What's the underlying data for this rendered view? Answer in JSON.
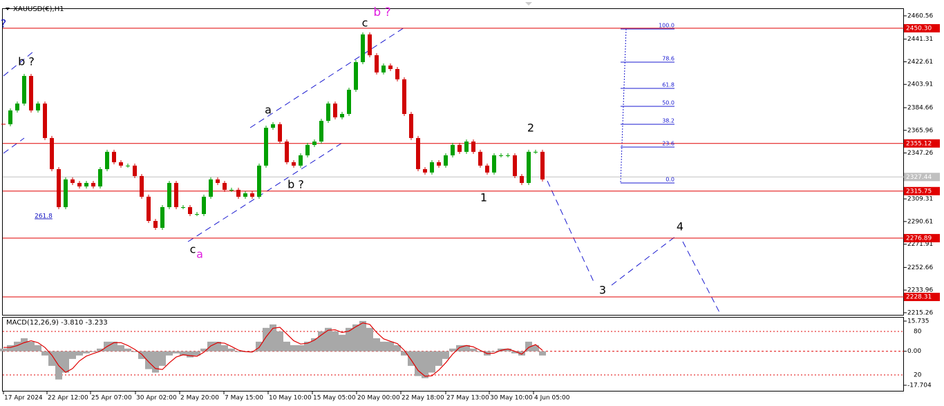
{
  "chart_data": [
    {
      "type": "candlestick",
      "title": "XAUUSD(€),H1",
      "x": [
        0,
        1,
        2,
        3,
        4,
        5,
        6,
        7,
        8,
        9,
        10,
        11,
        12,
        13,
        14,
        15,
        16,
        17,
        18,
        19,
        20,
        21,
        22,
        23,
        24,
        25,
        26,
        27,
        28,
        29,
        30,
        31,
        32,
        33,
        34,
        35,
        36,
        37,
        38,
        39,
        40,
        41,
        42,
        43,
        44,
        45,
        46,
        47,
        48,
        49,
        50,
        51,
        52,
        53,
        54,
        55,
        56,
        57,
        58,
        59,
        60,
        61,
        62,
        63,
        64,
        65,
        66,
        67,
        68,
        69,
        70,
        71,
        72,
        73,
        74,
        75,
        76,
        77,
        78
      ],
      "values": [
        2371.0,
        2382.4,
        2388.1,
        2410.9,
        2382.4,
        2388.1,
        2359.6,
        2333.9,
        2302.5,
        2325.4,
        2322.5,
        2319.6,
        2322.5,
        2319.6,
        2333.9,
        2348.2,
        2339.6,
        2336.8,
        2336.8,
        2328.2,
        2311.1,
        2291.1,
        2285.4,
        2302.5,
        2322.5,
        2302.5,
        2302.5,
        2296.8,
        2296.8,
        2311.1,
        2325.4,
        2322.5,
        2316.8,
        2316.8,
        2311.1,
        2313.9,
        2311.1,
        2336.8,
        2368.1,
        2371.0,
        2356.7,
        2339.6,
        2336.8,
        2345.3,
        2353.9,
        2356.7,
        2373.8,
        2388.1,
        2376.7,
        2379.5,
        2399.5,
        2422.3,
        2445.2,
        2428.0,
        2413.8,
        2419.5,
        2416.6,
        2408.1,
        2379.5,
        2359.6,
        2333.9,
        2331.1,
        2339.6,
        2336.8,
        2345.3,
        2353.9,
        2348.2,
        2356.7,
        2348.2,
        2336.8,
        2331.1,
        2345.3,
        2345.3,
        2345.3,
        2328.2,
        2322.5,
        2348.2,
        2348.2,
        2325.4
      ],
      "up_color": "#00a000",
      "down_color": "#d00000",
      "xlim": [
        0,
        130
      ],
      "xticks": [
        {
          "value": 0,
          "label": "17 Apr 2024"
        },
        {
          "value": 6.3,
          "label": "22 Apr 12:00"
        },
        {
          "value": 12.6,
          "label": "25 Apr 07:00"
        },
        {
          "value": 19.1,
          "label": "30 Apr 02:00"
        },
        {
          "value": 25.5,
          "label": "2 May 20:00"
        },
        {
          "value": 31.9,
          "label": "7 May 15:00"
        },
        {
          "value": 38.3,
          "label": "10 May 10:00"
        },
        {
          "value": 44.7,
          "label": "15 May 05:00"
        },
        {
          "value": 51.1,
          "label": "20 May 00:00"
        },
        {
          "value": 57.5,
          "label": "22 May 18:00"
        },
        {
          "value": 64,
          "label": "27 May 13:00"
        },
        {
          "value": 70.3,
          "label": "30 May 10:00"
        },
        {
          "value": 76.7,
          "label": "4 Jun 05:00"
        }
      ],
      "ylim": [
        2213.5,
        2466.8
      ],
      "yticks": [
        2460.56,
        2441.31,
        2422.61,
        2403.91,
        2384.66,
        2365.96,
        2347.26,
        2309.31,
        2290.61,
        2271.91,
        2252.66,
        2233.96,
        2215.26
      ],
      "levels": [
        {
          "value": 2450.3,
          "label": "2450.30",
          "color": "#e00000"
        },
        {
          "value": 2355.12,
          "label": "2355.12",
          "color": "#e00000"
        },
        {
          "value": 2327.44,
          "label": "2327.44",
          "color": "#c0c0c0"
        },
        {
          "value": 2315.75,
          "label": "2315.75",
          "color": "#e00000"
        },
        {
          "value": 2276.89,
          "label": "2276.89",
          "color": "#e00000"
        },
        {
          "value": 2228.31,
          "label": "2228.31",
          "color": "#e00000"
        }
      ],
      "annotations": [
        "?",
        "b ?",
        "b ?",
        "c",
        "a",
        "b ?",
        "c",
        "a",
        "1",
        "2",
        "3",
        "4",
        "261.8"
      ],
      "fibonacci": [
        "100.0",
        "78.6",
        "61.8",
        "50.0",
        "38.2",
        "23.6",
        "0.0"
      ]
    },
    {
      "type": "macd",
      "title": "MACD(12,26,9) -3.810 -3.233",
      "x": [
        0,
        1,
        2,
        3,
        4,
        5,
        6,
        7,
        8,
        9,
        10,
        11,
        12,
        13,
        14,
        15,
        16,
        17,
        18,
        19,
        20,
        21,
        22,
        23,
        24,
        25,
        26,
        27,
        28,
        29,
        30,
        31,
        32,
        33,
        34,
        35,
        36,
        37,
        38,
        39,
        40,
        41,
        42,
        43,
        44,
        45,
        46,
        47,
        48,
        49,
        50,
        51,
        52,
        53,
        54,
        55,
        56,
        57,
        58,
        59,
        60,
        61,
        62,
        63,
        64,
        65,
        66,
        67,
        68,
        69,
        70,
        71,
        72,
        73,
        74,
        75,
        76,
        77,
        78
      ],
      "xlim": [
        0,
        130
      ],
      "series": [
        {
          "color": "#a8a8a8",
          "values": [
            1.4,
            3.2,
            5.0,
            6.8,
            5.0,
            3.2,
            -2.2,
            -7.6,
            -14.7,
            -11.1,
            -4.0,
            -2.2,
            -1.1,
            -0.4,
            1.4,
            5.0,
            5.0,
            3.2,
            1.4,
            -0.4,
            -4.0,
            -9.3,
            -11.1,
            -7.6,
            -2.2,
            -1.1,
            -2.2,
            -3.2,
            -2.2,
            1.4,
            5.0,
            5.0,
            3.2,
            1.4,
            -0.4,
            -0.4,
            -0.4,
            5.0,
            12.2,
            14.0,
            10.4,
            5.0,
            3.2,
            3.2,
            5.0,
            6.8,
            10.4,
            12.2,
            10.4,
            8.6,
            12.2,
            14.0,
            15.8,
            12.2,
            6.8,
            5.0,
            5.0,
            3.2,
            -2.2,
            -7.6,
            -12.9,
            -14.0,
            -11.1,
            -7.6,
            -4.0,
            1.4,
            3.2,
            3.2,
            1.4,
            -0.4,
            -2.2,
            -0.4,
            1.4,
            1.4,
            -1.1,
            -2.2,
            5.0,
            3.2,
            -2.2
          ]
        },
        {
          "color": "#e00000",
          "values": [
            2.0,
            2.0,
            3.0,
            4.5,
            5.5,
            4.5,
            2.0,
            -2.0,
            -7.5,
            -11.0,
            -9.0,
            -5.0,
            -2.5,
            -1.2,
            0.0,
            2.5,
            4.5,
            4.5,
            3.0,
            1.0,
            -1.5,
            -5.5,
            -9.0,
            -9.5,
            -6.0,
            -3.0,
            -1.8,
            -2.3,
            -2.6,
            -0.5,
            2.8,
            4.5,
            4.2,
            2.5,
            0.6,
            -0.2,
            -0.4,
            2.0,
            7.5,
            12.0,
            12.5,
            9.0,
            5.5,
            3.8,
            4.2,
            5.8,
            8.5,
            11.0,
            11.2,
            9.8,
            10.5,
            12.8,
            14.8,
            14.0,
            9.8,
            6.5,
            5.2,
            4.0,
            0.5,
            -4.5,
            -10.0,
            -13.0,
            -12.8,
            -9.8,
            -6.0,
            -1.5,
            2.0,
            3.0,
            2.3,
            0.5,
            -1.2,
            -1.0,
            0.5,
            1.2,
            0.0,
            -1.5,
            2.0,
            3.5,
            0.5
          ]
        }
      ],
      "ylim": [
        -20.6,
        17.9
      ],
      "yticks": [
        15.735,
        {
          "value": 0,
          "label": "0.00"
        },
        -17.704
      ],
      "y2lim": [
        -1.9,
        100
      ],
      "y2ticks": [
        80,
        20
      ]
    }
  ]
}
